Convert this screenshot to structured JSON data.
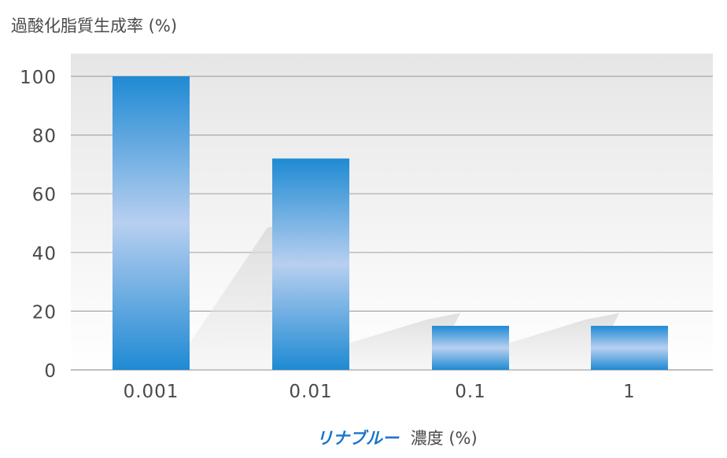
{
  "chart_data": {
    "type": "bar",
    "ylabel": "過酸化脂質生成率 (%)",
    "xlabel_brand": "リナブルー",
    "xlabel_suffix": "濃度 (%)",
    "categories": [
      "0.001",
      "0.01",
      "0.1",
      "1"
    ],
    "values": [
      100,
      72,
      15,
      15
    ],
    "ylim": [
      0,
      100
    ],
    "yticks": [
      0,
      20,
      40,
      60,
      80,
      100
    ],
    "grid": true,
    "colors": {
      "bar_edge": "#1f8ad3",
      "bar_center": "#b8cff0",
      "plot_bg_top": "#e6e6e6",
      "plot_bg_bottom": "#ffffff",
      "grid": "#a8a8a8",
      "brand_blue": "#1a74c9",
      "text": "#4a4a4a"
    }
  }
}
